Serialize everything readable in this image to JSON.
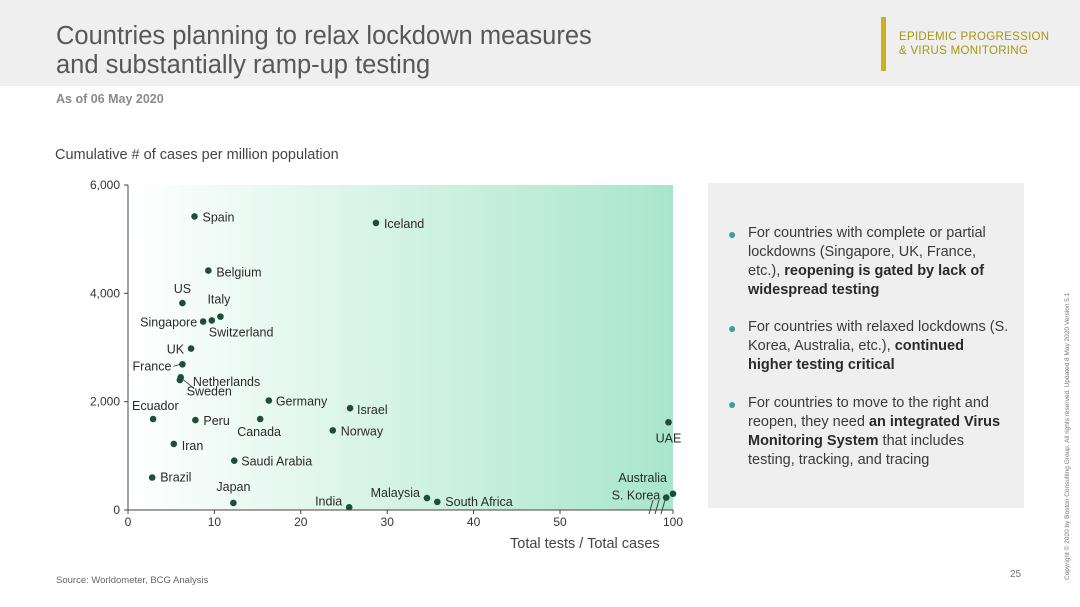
{
  "header": {
    "title_line1": "Countries planning to relax lockdown measures",
    "title_line2": "and substantially ramp-up testing",
    "tag_line1": "EPIDEMIC PROGRESSION",
    "tag_line2": "& VIRUS MONITORING",
    "date": "As of 06 May 2020"
  },
  "chart_data": {
    "type": "scatter",
    "ylabel": "Cumulative # of cases per million population",
    "xlabel": "Total tests / Total cases",
    "xlim": [
      0,
      100
    ],
    "ylim": [
      0,
      6000
    ],
    "x_ticks": [
      "0",
      "10",
      "20",
      "30",
      "40",
      "50",
      "100"
    ],
    "y_ticks": [
      "0",
      "2,000",
      "4,000",
      "6,000"
    ],
    "axis_break_after": 50,
    "background_gradient": [
      "#ffffff",
      "#a8e6cc"
    ],
    "point_color": "#1e4d3a",
    "points": [
      {
        "name": "Spain",
        "x": 7.7,
        "y": 5420
      },
      {
        "name": "Iceland",
        "x": 28.7,
        "y": 5300
      },
      {
        "name": "Belgium",
        "x": 9.3,
        "y": 4420
      },
      {
        "name": "US",
        "x": 6.3,
        "y": 3820
      },
      {
        "name": "Italy",
        "x": 10.7,
        "y": 3570
      },
      {
        "name": "Singapore",
        "x": 8.7,
        "y": 3480
      },
      {
        "name": "Switzerland",
        "x": 9.7,
        "y": 3500
      },
      {
        "name": "UK",
        "x": 7.3,
        "y": 2980
      },
      {
        "name": "France",
        "x": 6.3,
        "y": 2690
      },
      {
        "name": "Netherlands",
        "x": 6.0,
        "y": 2400
      },
      {
        "name": "Sweden",
        "x": 6.1,
        "y": 2450
      },
      {
        "name": "Germany",
        "x": 16.3,
        "y": 2020
      },
      {
        "name": "Israel",
        "x": 25.7,
        "y": 1880
      },
      {
        "name": "Ecuador",
        "x": 2.9,
        "y": 1680
      },
      {
        "name": "Peru",
        "x": 7.8,
        "y": 1660
      },
      {
        "name": "Canada",
        "x": 15.3,
        "y": 1680
      },
      {
        "name": "Norway",
        "x": 23.7,
        "y": 1470
      },
      {
        "name": "Iran",
        "x": 5.3,
        "y": 1220
      },
      {
        "name": "Saudi Arabia",
        "x": 12.3,
        "y": 910
      },
      {
        "name": "Brazil",
        "x": 2.8,
        "y": 600
      },
      {
        "name": "Japan",
        "x": 12.2,
        "y": 130
      },
      {
        "name": "India",
        "x": 25.6,
        "y": 50
      },
      {
        "name": "Malaysia",
        "x": 34.6,
        "y": 220
      },
      {
        "name": "South Africa",
        "x": 35.8,
        "y": 150
      },
      {
        "name": "UAE",
        "x": 98,
        "y": 1620
      },
      {
        "name": "Australia",
        "x": 100,
        "y": 300
      },
      {
        "name": "S. Korea",
        "x": 97,
        "y": 230
      }
    ]
  },
  "panel": {
    "bullet1_plain": "For countries with complete or partial lockdowns (Singapore, UK, France, etc.), ",
    "bullet1_bold": "reopening is gated by lack of widespread testing",
    "bullet2_plain": "For countries with relaxed lockdowns (S. Korea, Australia, etc.), ",
    "bullet2_bold": "continued higher testing critical",
    "bullet3_plain1": "For countries to move to the right and  reopen, they need ",
    "bullet3_bold": "an integrated Virus Monitoring System",
    "bullet3_plain2": " that includes testing, tracking, and tracing"
  },
  "footer": {
    "source": "Source: Worldometer, BCG Analysis",
    "page_number": "25",
    "copyright": "Copyright © 2020 by Boston Consulting Group. All rights reserved.  Updated 8 May 2020 Version 5.1"
  }
}
